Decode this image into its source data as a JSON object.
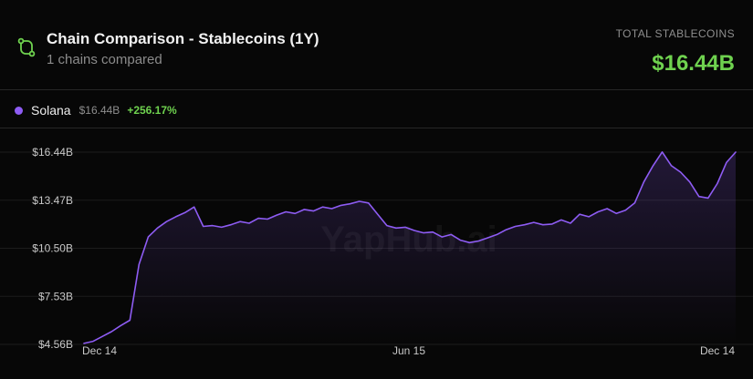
{
  "header": {
    "title": "Chain Comparison - Stablecoins (1Y)",
    "subtitle": "1 chains compared",
    "total_label": "TOTAL STABLECOINS",
    "total_value": "$16.44B",
    "icon": "git-compare-icon"
  },
  "legend": {
    "name": "Solana",
    "value": "$16.44B",
    "change": "+256.17%"
  },
  "watermark": "YapHub.ai",
  "colors": {
    "background": "#070707",
    "accent_green": "#6fd24f",
    "series_purple": "#8e5cf4"
  },
  "chart_data": {
    "type": "area",
    "title": "",
    "xlabel": "",
    "ylabel": "",
    "x_ticks": [
      "Dec 14",
      "Jun 15",
      "Dec 14"
    ],
    "y_ticks": [
      "$4.56B",
      "$7.53B",
      "$10.50B",
      "$13.47B",
      "$16.44B"
    ],
    "y_tick_values": [
      4.56,
      7.53,
      10.5,
      13.47,
      16.44
    ],
    "ylim": [
      4.56,
      16.44
    ],
    "grid": true,
    "series": [
      {
        "name": "Solana",
        "color": "#8e5cf4",
        "x": [
          0,
          1,
          2,
          3,
          4,
          5,
          6,
          7,
          8,
          9,
          10,
          11,
          12,
          13,
          14,
          15,
          16,
          17,
          18,
          19,
          20,
          21,
          22,
          23,
          24,
          25,
          26,
          27,
          28,
          29,
          30,
          31,
          32,
          33,
          34,
          35,
          36,
          37,
          38,
          39,
          40,
          41,
          42,
          43,
          44,
          45,
          46,
          47,
          48,
          49,
          50,
          51,
          52,
          53,
          54,
          55,
          56,
          57,
          58,
          59,
          60,
          61,
          62,
          63,
          64,
          65,
          66,
          67,
          68,
          69,
          70,
          71
        ],
        "values": [
          4.62,
          4.75,
          5.05,
          5.35,
          5.72,
          6.05,
          9.5,
          11.2,
          11.75,
          12.15,
          12.45,
          12.7,
          13.05,
          11.85,
          11.9,
          11.8,
          11.95,
          12.15,
          12.05,
          12.35,
          12.3,
          12.55,
          12.75,
          12.65,
          12.9,
          12.8,
          13.05,
          12.95,
          13.15,
          13.25,
          13.4,
          13.3,
          12.6,
          11.9,
          11.75,
          11.8,
          11.6,
          11.45,
          11.5,
          11.2,
          11.35,
          11.0,
          10.85,
          10.95,
          11.15,
          11.35,
          11.65,
          11.85,
          11.95,
          12.1,
          11.95,
          12.0,
          12.25,
          12.05,
          12.6,
          12.45,
          12.75,
          12.95,
          12.65,
          12.85,
          13.3,
          14.6,
          15.6,
          16.45,
          15.6,
          15.2,
          14.6,
          13.7,
          13.6,
          14.5,
          15.8,
          16.44
        ]
      }
    ]
  }
}
